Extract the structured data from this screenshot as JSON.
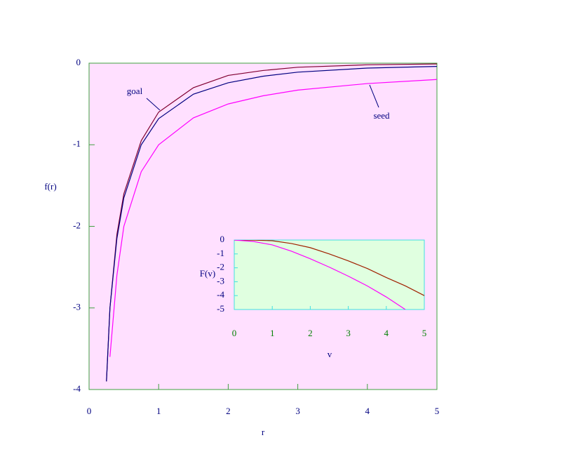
{
  "chart_data": [
    {
      "type": "line",
      "background": "#ffe0ff",
      "frame_color": "#40a040",
      "tick_color": "#000080",
      "x_label": "r",
      "y_label": "f(r)",
      "x": [
        0.25,
        0.3,
        0.4,
        0.5,
        0.75,
        1,
        1.5,
        2,
        2.5,
        3,
        4,
        5
      ],
      "series": [
        {
          "name": "goal",
          "color": "#800030",
          "values": [
            -3.9,
            -3.0,
            -2.1,
            -1.6,
            -0.95,
            -0.6,
            -0.3,
            -0.15,
            -0.09,
            -0.05,
            -0.02,
            -0.01
          ]
        },
        {
          "color": "#000080",
          "values": [
            -3.9,
            -3.0,
            -2.15,
            -1.65,
            -1.0,
            -0.68,
            -0.38,
            -0.24,
            -0.16,
            -0.11,
            -0.06,
            -0.04
          ]
        },
        {
          "name": "seed",
          "color": "#ff00ff",
          "values": [
            null,
            -3.6,
            -2.6,
            -2.0,
            -1.33,
            -1.0,
            -0.67,
            -0.5,
            -0.4,
            -0.33,
            -0.25,
            -0.2
          ]
        }
      ],
      "xlim": [
        0,
        5
      ],
      "ylim": [
        -4,
        0
      ],
      "xticks": [
        0,
        1,
        2,
        3,
        4,
        5
      ],
      "yticks": [
        -4,
        -3,
        -2,
        -1,
        0
      ]
    },
    {
      "type": "line",
      "background": "#e0ffe0",
      "frame_color": "#40e0e0",
      "tick_color": "#000080",
      "xtick_color": "#008000",
      "x_label": "v",
      "y_label": "F(v)",
      "x": [
        0,
        0.5,
        1,
        1.5,
        2,
        2.5,
        3,
        3.5,
        4,
        4.5,
        5
      ],
      "series": [
        {
          "color": "#a02000",
          "values": [
            0,
            -0.01,
            -0.05,
            -0.25,
            -0.55,
            -1.0,
            -1.5,
            -2.05,
            -2.7,
            -3.3,
            -4.0
          ]
        },
        {
          "color": "#ff00ff",
          "values": [
            0,
            -0.1,
            -0.35,
            -0.8,
            -1.35,
            -1.95,
            -2.6,
            -3.3,
            -4.1,
            -5.0,
            null
          ]
        }
      ],
      "xlim": [
        0,
        5
      ],
      "ylim": [
        -5,
        0
      ],
      "xticks": [
        0,
        1,
        2,
        3,
        4,
        5
      ],
      "yticks": [
        -5,
        -4,
        -3,
        -2,
        -1,
        0
      ]
    }
  ]
}
